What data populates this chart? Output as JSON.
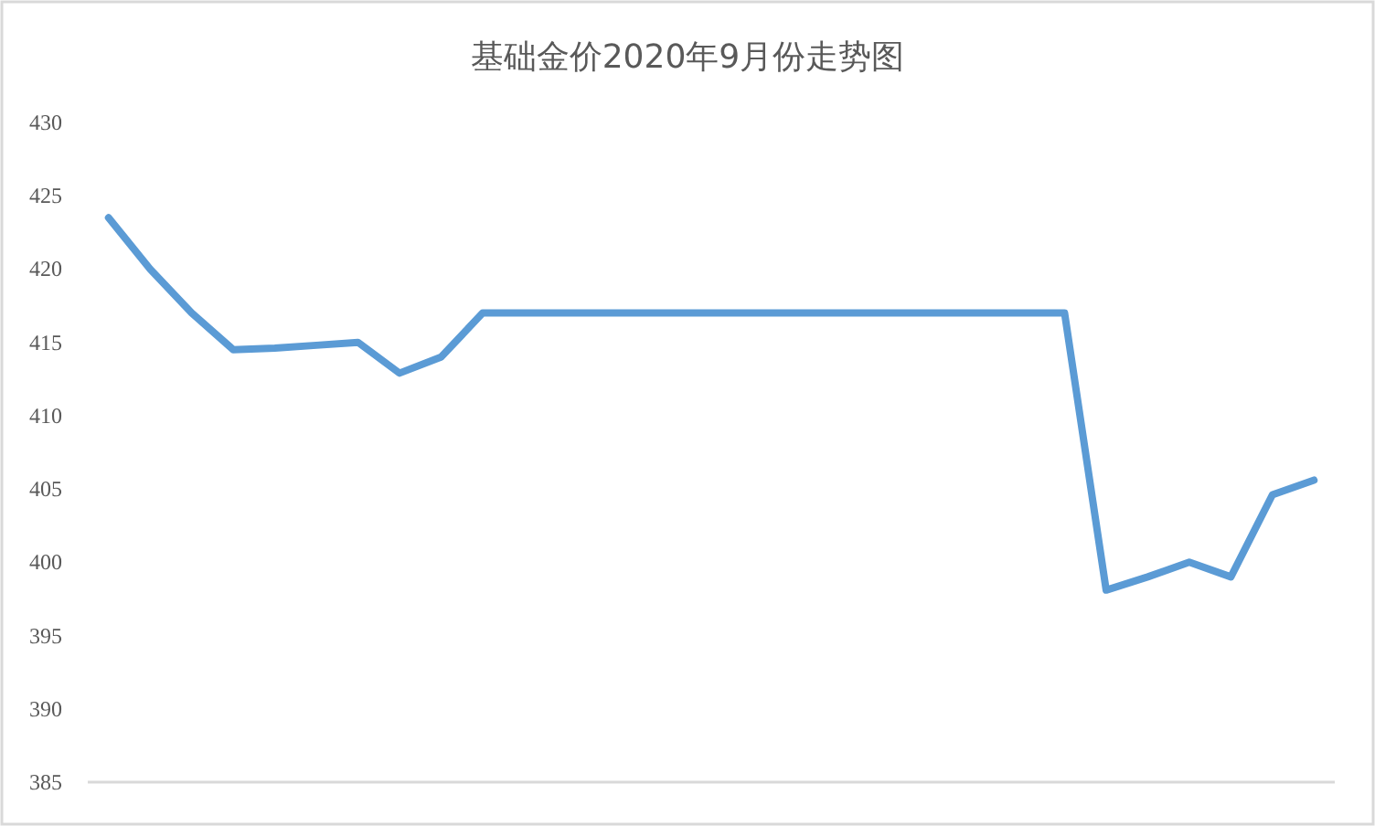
{
  "chart_data": {
    "type": "line",
    "title": "基础金价2020年9月份走势图",
    "categories": [
      null,
      null,
      null,
      null,
      null,
      null,
      null,
      null,
      null,
      null,
      null,
      null,
      null,
      null,
      null,
      null,
      null,
      null,
      null,
      null,
      null,
      null,
      null,
      null,
      null,
      null,
      null,
      null,
      null,
      null
    ],
    "series": [
      {
        "color": "#5b9bd5",
        "values": [
          423.5,
          420,
          417,
          414.5,
          414.6,
          414.8,
          415,
          412.9,
          414,
          417,
          417,
          417,
          417,
          417,
          417,
          417,
          417,
          417,
          417,
          417,
          417,
          417,
          417,
          417,
          398.1,
          399,
          400,
          399,
          404.6,
          405.6
        ]
      }
    ],
    "ylim": [
      385,
      430
    ],
    "yticks": [
      385,
      390,
      395,
      400,
      405,
      410,
      415,
      420,
      425,
      430
    ],
    "grid": false,
    "marker": "none",
    "line_style": "solid"
  }
}
